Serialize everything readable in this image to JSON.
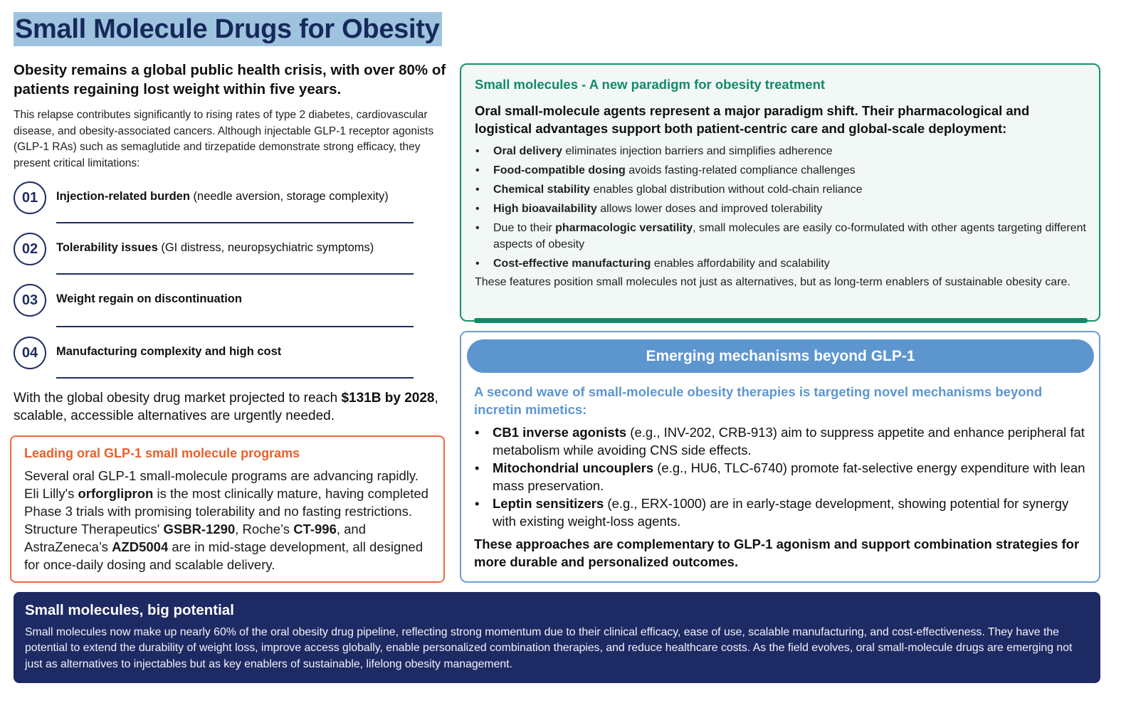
{
  "title": "Small Molecule Drugs for Obesity",
  "lead": "Obesity remains a global public health crisis, with over 80% of patients regaining lost weight within five years.",
  "intro": "This relapse contributes significantly to rising rates of type 2 diabetes, cardiovascular disease, and obesity-associated cancers. Although injectable GLP-1 receptor agonists (GLP-1 RAs) such as semaglutide and tirzepatide demonstrate strong efficacy, they present critical limitations:",
  "limitations": [
    {
      "num": "01",
      "bold": "Injection-related burden",
      "rest": " (needle aversion, storage complexity)"
    },
    {
      "num": "02",
      "bold": "Tolerability issues",
      "rest": " (GI distress, neuropsychiatric symptoms)"
    },
    {
      "num": "03",
      "bold": "Weight regain on discontinuation",
      "rest": ""
    },
    {
      "num": "04",
      "bold": "Manufacturing complexity and high cost",
      "rest": ""
    }
  ],
  "market": {
    "pre": "With the global obesity drug market projected to reach ",
    "bold": "$131B by 2028",
    "post": ", scalable, accessible alternatives are urgently needed."
  },
  "leading": {
    "heading": "Leading oral GLP-1 small molecule programs",
    "t1": "Several oral GLP-1 small-molecule programs are advancing rapidly. Eli Lilly's ",
    "b1": "orforglipron",
    "t2": " is the most clinically mature, having completed Phase 3 trials with promising tolerability and no fasting restrictions. Structure Therapeutics' ",
    "b2": "GSBR-1290",
    "t3": ", Roche’s ",
    "b3": "CT-996",
    "t4": ", and AstraZeneca’s ",
    "b4": "AZD5004",
    "t5": " are in mid-stage development, all designed for once-daily dosing and scalable delivery."
  },
  "paradigm": {
    "heading": "Small molecules - A new paradigm for obesity treatment",
    "subheading": "Oral small-molecule agents represent a major paradigm shift. Their pharmacological and logistical advantages support both patient-centric care and global-scale deployment:",
    "bullets": [
      {
        "pre": "",
        "bold": "Oral delivery",
        "post": " eliminates injection barriers and simplifies adherence"
      },
      {
        "pre": "",
        "bold": "Food-compatible dosing",
        "post": " avoids fasting-related compliance challenges"
      },
      {
        "pre": "",
        "bold": "Chemical stability",
        "post": " enables global distribution without cold-chain reliance"
      },
      {
        "pre": "",
        "bold": "High bioavailability",
        "post": " allows lower doses and improved tolerability"
      },
      {
        "pre": "Due to their ",
        "bold": "pharmacologic versatility",
        "post": ", small molecules are easily co-formulated with other agents targeting different aspects of obesity"
      },
      {
        "pre": "",
        "bold": "Cost-effective manufacturing",
        "post": " enables affordability and scalability"
      }
    ],
    "footer": "These features position small molecules not just as alternatives, but as long-term enablers of sustainable obesity care."
  },
  "emerging": {
    "banner": "Emerging mechanisms beyond GLP-1",
    "heading": "A second wave of small-molecule obesity therapies is targeting novel mechanisms beyond incretin mimetics:",
    "bullets": [
      {
        "bold": "CB1 inverse agonists",
        "post": " (e.g., INV-202, CRB-913) aim to suppress appetite and enhance peripheral fat metabolism while avoiding CNS side effects."
      },
      {
        "bold": "Mitochondrial uncouplers",
        "post": " (e.g., HU6, TLC-6740) promote fat-selective energy expenditure with lean mass preservation."
      },
      {
        "bold": "Leptin sensitizers",
        "post": " (e.g., ERX-1000) are in early-stage development, showing potential for synergy with existing weight-loss agents."
      }
    ],
    "footer": "These approaches are complementary to GLP-1 agonism and support combination strategies for more durable and personalized outcomes."
  },
  "potential": {
    "heading": "Small molecules, big potential",
    "body": "Small molecules now make up nearly 60% of the oral obesity drug pipeline, reflecting strong momentum due to their clinical efficacy, ease of use, scalable manufacturing, and cost-effectiveness. They have the potential to extend the durability of weight loss, improve access globally, enable personalized combination therapies, and reduce healthcare costs. As the field evolves, oral small-molecule drugs are emerging not just as alternatives to injectables but as key enablers of sustainable, lifelong obesity management."
  }
}
